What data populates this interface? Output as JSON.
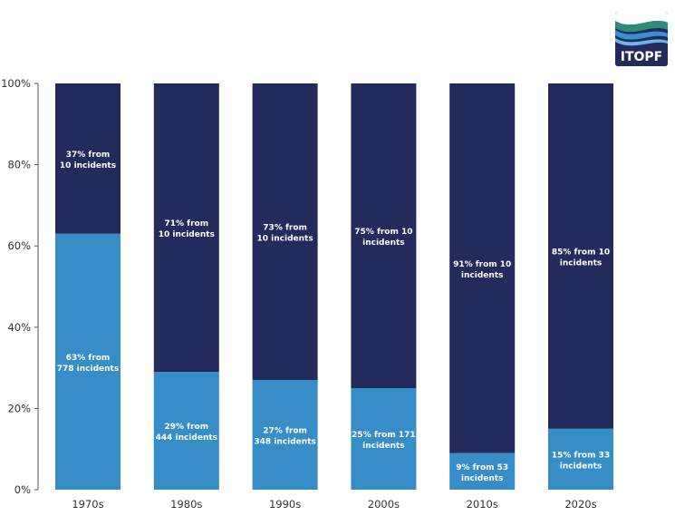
{
  "logo": {
    "text": "ITOPF",
    "colors": [
      "#1f2b5e",
      "#2e8b7a",
      "#3a8fd0"
    ]
  },
  "chart_data": {
    "type": "bar",
    "stacked": true,
    "percent": true,
    "categories": [
      "1970s",
      "1980s",
      "1990s",
      "2000s",
      "2010s",
      "2020s"
    ],
    "series": [
      {
        "color": "#368dc7",
        "values": [
          63,
          29,
          27,
          25,
          9,
          15
        ],
        "labels": [
          "63% from|778 incidents",
          "29% from|444 incidents",
          "27% from|348 incidents",
          "25% from 171|incidents",
          "9% from 53|incidents",
          "15% from 33|incidents"
        ]
      },
      {
        "color": "#232a5c",
        "values": [
          37,
          71,
          73,
          75,
          91,
          85
        ],
        "labels": [
          "37% from|10 incidents",
          "71% from|10 incidents",
          "73% from|10 incidents",
          "75% from 10|incidents",
          "91% from 10|incidents",
          "85% from 10|incidents"
        ]
      }
    ],
    "yticks": [
      "0%",
      "20%",
      "40%",
      "60%",
      "80%",
      "100%"
    ],
    "ylim": [
      0,
      100
    ],
    "grid": false,
    "title": "",
    "xlabel": "",
    "ylabel": ""
  }
}
